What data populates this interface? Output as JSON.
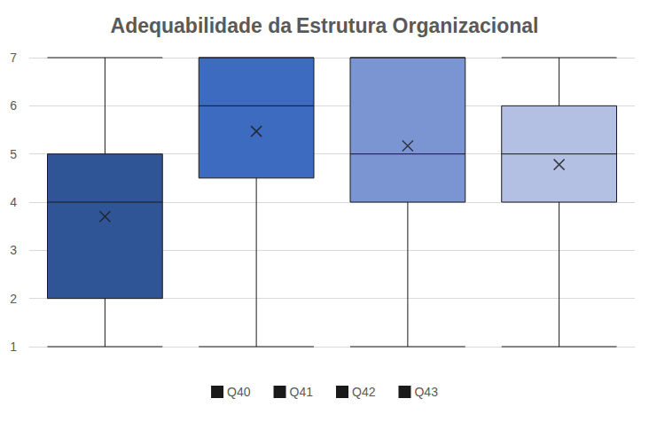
{
  "chart_data": {
    "type": "boxplot",
    "title": "Adequabilidade da Estrutura Organizacional",
    "series": [
      {
        "name": "Q40",
        "color": "#2f5597",
        "min": 1,
        "q1": 2,
        "median": 4,
        "q3": 5,
        "max": 7,
        "mean": 3.7
      },
      {
        "name": "Q41",
        "color": "#3d6bbf",
        "min": 1,
        "q1": 4.5,
        "median": 6,
        "q3": 7,
        "max": 7,
        "mean": 5.47
      },
      {
        "name": "Q42",
        "color": "#7b95d3",
        "min": 1,
        "q1": 4,
        "median": 5,
        "q3": 7,
        "max": 7,
        "mean": 5.17
      },
      {
        "name": "Q43",
        "color": "#b3c0e4",
        "min": 1,
        "q1": 4,
        "median": 5,
        "q3": 6,
        "max": 7,
        "mean": 4.78
      }
    ],
    "marker": "x",
    "ylim": [
      1,
      7
    ],
    "yticks": [
      1,
      2,
      3,
      4,
      5,
      6,
      7
    ],
    "grid": true,
    "legend": "bottom",
    "tick_labels": "y"
  }
}
